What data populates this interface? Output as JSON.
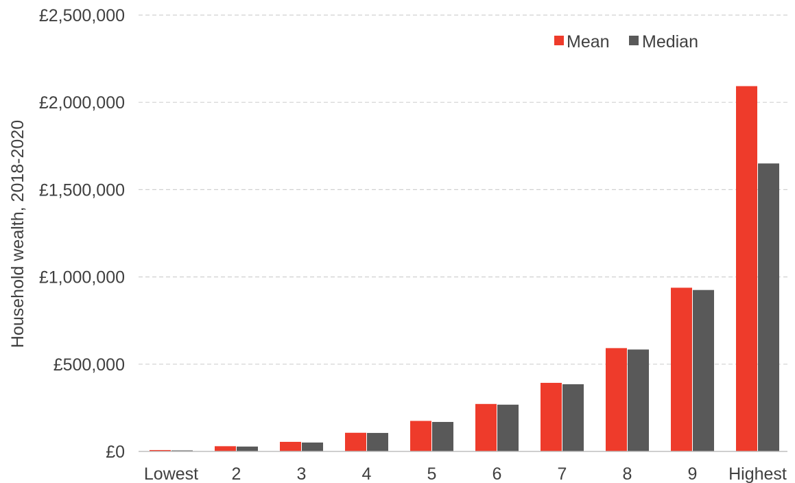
{
  "chart_data": {
    "type": "bar",
    "title": "",
    "xlabel": "",
    "ylabel": "Household wealth, 2018-2020",
    "categories": [
      "Lowest",
      "2",
      "3",
      "4",
      "5",
      "6",
      "7",
      "8",
      "9",
      "Highest"
    ],
    "series": [
      {
        "name": "Mean",
        "color": "#ee3b2b",
        "values": [
          8000,
          30000,
          55000,
          107000,
          175000,
          272000,
          393000,
          592000,
          938000,
          2093000
        ]
      },
      {
        "name": "Median",
        "color": "#595959",
        "values": [
          6000,
          28000,
          51000,
          106000,
          169000,
          268000,
          385000,
          584000,
          925000,
          1650000
        ]
      }
    ],
    "yticks": [
      "£0",
      "£500,000",
      "£1,000,000",
      "£1,500,000",
      "£2,000,000",
      "£2,500,000"
    ],
    "ylim": [
      0,
      2500000
    ],
    "grid": true,
    "legend": "top-right"
  }
}
